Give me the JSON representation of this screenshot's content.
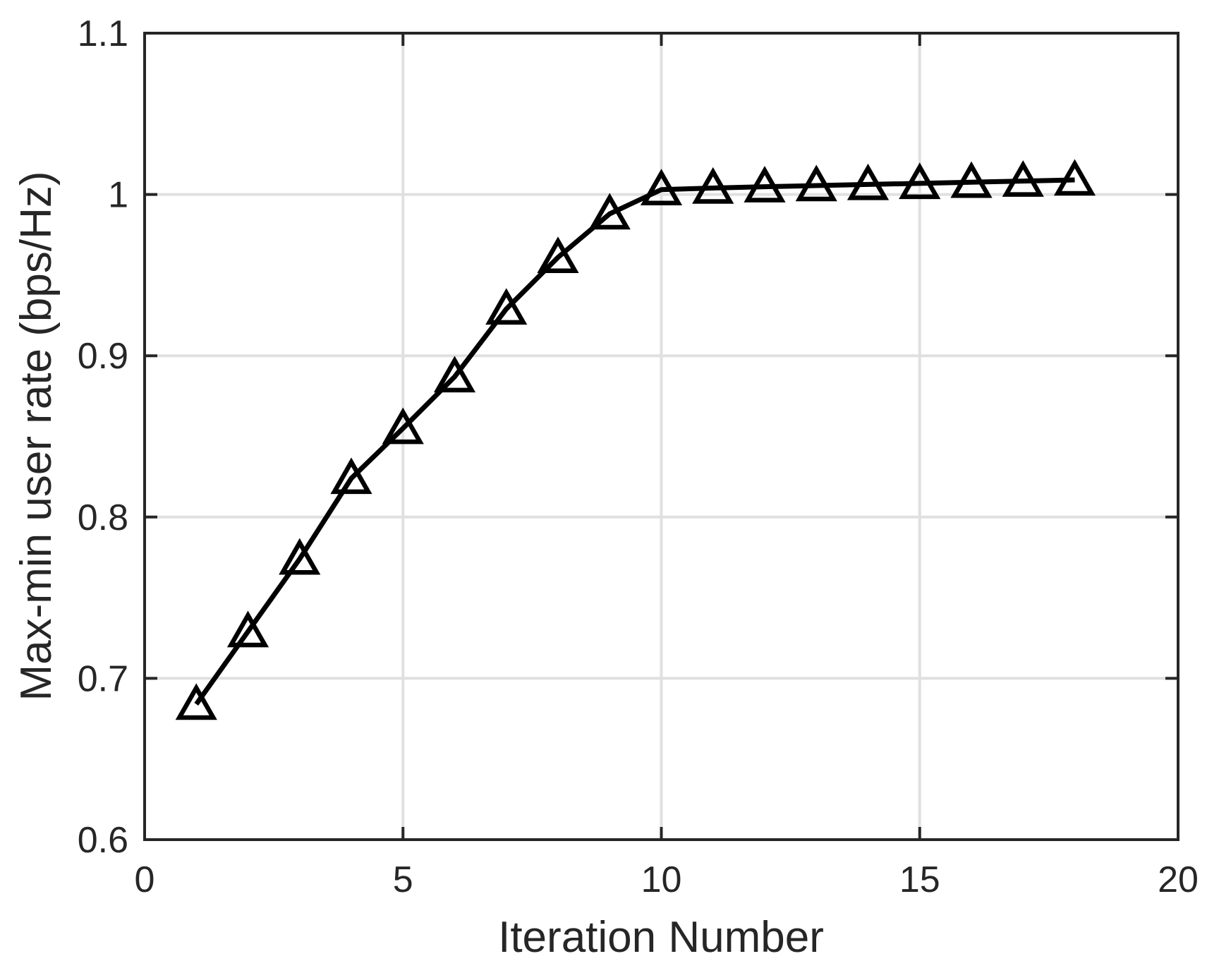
{
  "chart_data": {
    "type": "line",
    "title": "",
    "xlabel": "Iteration Number",
    "ylabel": "Max-min user rate (bps/Hz)",
    "xlim": [
      0,
      20
    ],
    "ylim": [
      0.6,
      1.1
    ],
    "xticks": [
      0,
      5,
      10,
      15,
      20
    ],
    "xtick_labels": [
      "0",
      "5",
      "10",
      "15",
      "20"
    ],
    "yticks": [
      0.6,
      0.7,
      0.8,
      0.9,
      1.0,
      1.1
    ],
    "ytick_labels": [
      "0.6",
      "0.7",
      "0.8",
      "0.9",
      "1",
      "1.1"
    ],
    "grid": true,
    "legend": "none",
    "series": [
      {
        "name": "max-min-user-rate",
        "marker": "triangle-up-open",
        "x": [
          1,
          2,
          3,
          4,
          5,
          6,
          7,
          8,
          9,
          10,
          11,
          12,
          13,
          14,
          15,
          16,
          17,
          18
        ],
        "y": [
          0.684,
          0.729,
          0.774,
          0.824,
          0.855,
          0.887,
          0.929,
          0.961,
          0.988,
          1.003,
          1.004,
          1.0048,
          1.0055,
          1.0062,
          1.0069,
          1.0076,
          1.0083,
          1.009
        ]
      }
    ],
    "colors": {
      "line": "#000000",
      "marker_edge": "#000000",
      "axis": "#262626",
      "grid": "#e0e0e0",
      "text": "#262626",
      "background": "#ffffff"
    }
  }
}
